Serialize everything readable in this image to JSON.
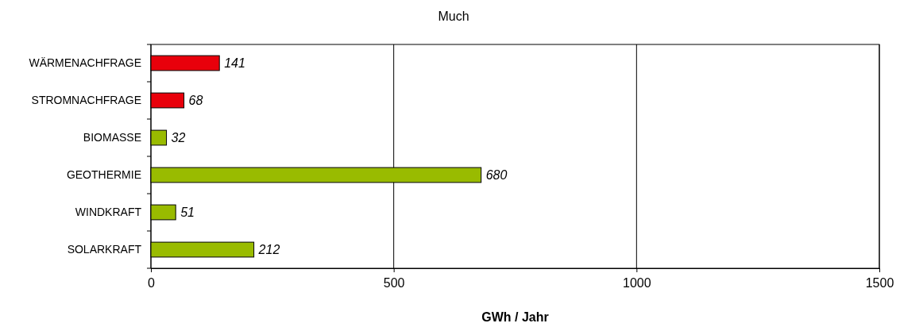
{
  "chart_data": {
    "type": "bar",
    "orientation": "horizontal",
    "title": "Much",
    "xlabel": "GWh / Jahr",
    "categories": [
      "WÄRMENACHFRAGE",
      "STROMNACHFRAGE",
      "BIOMASSE",
      "GEOTHERMIE",
      "WINDKRAFT",
      "SOLARKRAFT"
    ],
    "values": [
      141,
      68,
      32,
      680,
      51,
      212
    ],
    "colors": [
      "#e8000b",
      "#e8000b",
      "#99bb00",
      "#99bb00",
      "#99bb00",
      "#99bb00"
    ],
    "xlim": [
      0,
      1500
    ],
    "xticks": [
      0,
      500,
      1000,
      1500
    ],
    "grid": "x",
    "data_labels": true
  }
}
